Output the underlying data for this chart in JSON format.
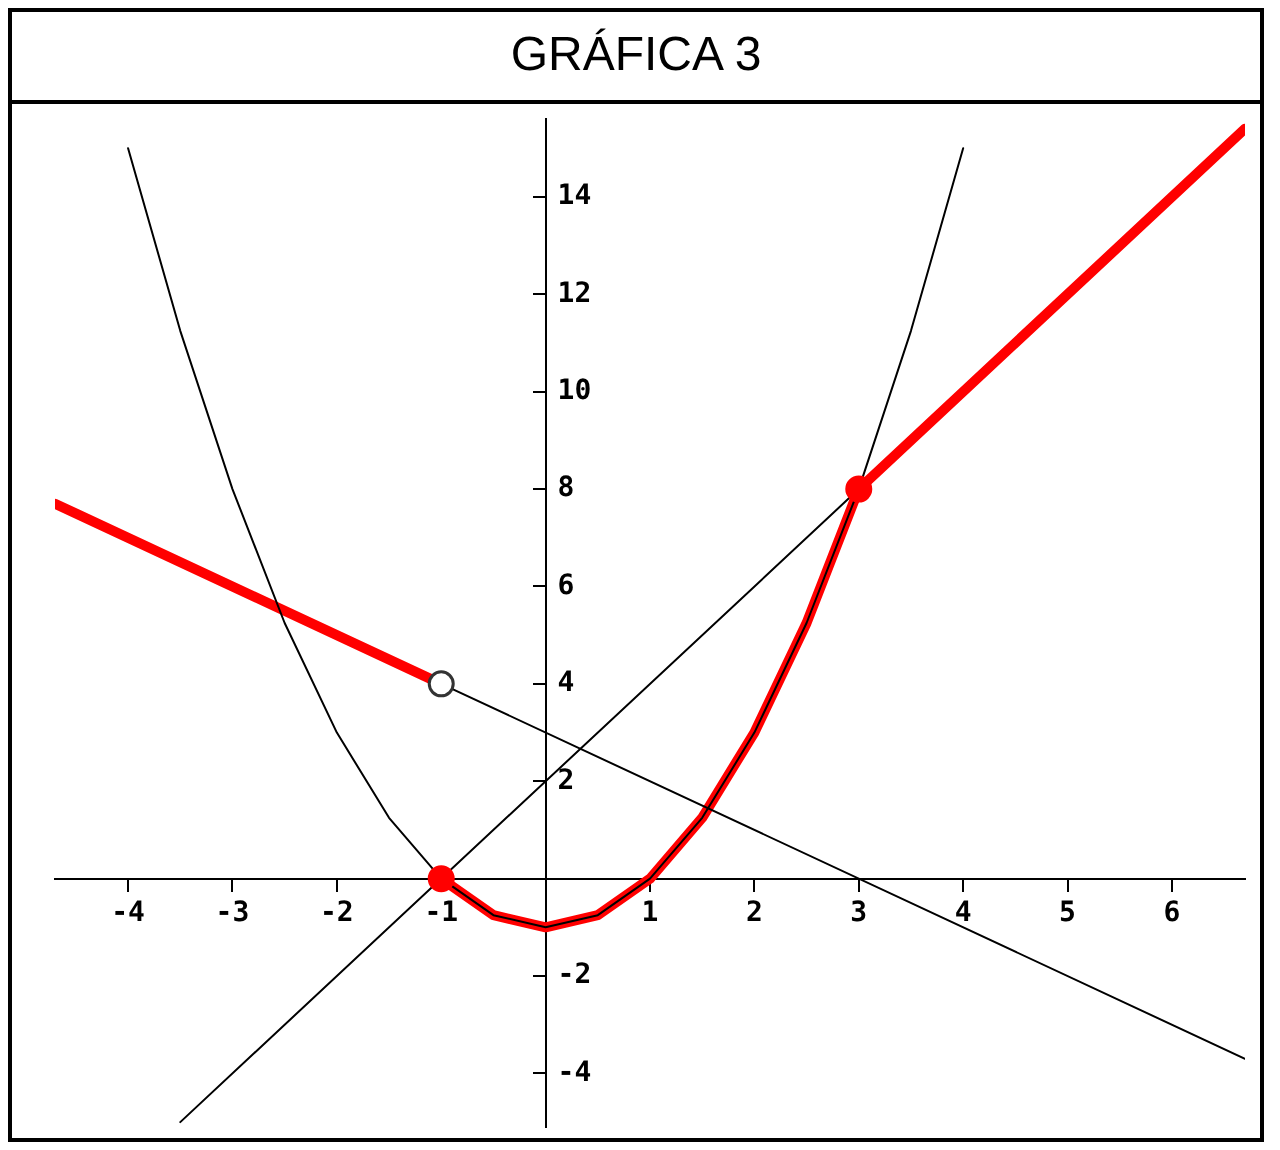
{
  "chart_data": {
    "type": "line",
    "title": "GRÁFICA 3",
    "xlim": [
      -4.7,
      6.7
    ],
    "ylim": [
      -5.1,
      15.6
    ],
    "xticks": [
      -4,
      -3,
      -2,
      -1,
      {
        "value": 0,
        "label": null
      },
      1,
      2,
      3,
      4,
      5,
      6
    ],
    "yticks": [
      -4,
      -2,
      {
        "value": 0,
        "label": null
      },
      2,
      4,
      6,
      8,
      10,
      12,
      14
    ],
    "grid": false,
    "legend": false,
    "marker": "none",
    "series": [
      {
        "type": "line",
        "color": "#000000",
        "x": [
          -4,
          -3.5,
          -3,
          -2.5,
          -2,
          -1.5,
          -1,
          -0.5,
          0,
          0.5,
          1,
          1.5,
          2,
          2.5,
          3,
          3.5,
          4
        ],
        "values": [
          15,
          11.25,
          8,
          5.25,
          3,
          1.25,
          0,
          -0.75,
          -1,
          -0.75,
          0,
          1.25,
          3,
          5.25,
          8,
          11.25,
          15
        ]
      },
      {
        "type": "line",
        "color": "#000000",
        "x": [
          -1,
          6.7
        ],
        "values": [
          4,
          -3.7
        ]
      },
      {
        "type": "line",
        "color": "#000000",
        "x": [
          -3.5,
          3
        ],
        "values": [
          -5,
          8
        ]
      },
      {
        "type": "line",
        "color": "#ff0000",
        "x": [
          -4.7,
          -1
        ],
        "values": [
          7.7,
          4
        ]
      },
      {
        "type": "line",
        "color": "#ff0000",
        "x": [
          -1,
          -0.5,
          0,
          0.5,
          1,
          1.5,
          2,
          2.5,
          3,
          6.7
        ],
        "values": [
          0,
          -0.75,
          -1,
          -0.75,
          0,
          1.25,
          3,
          5.25,
          8,
          15.4
        ]
      },
      {
        "type": "scatter",
        "color": "#ff0000",
        "marker": "circle",
        "x": [
          -1,
          3
        ],
        "values": [
          0,
          8
        ]
      },
      {
        "type": "scatter",
        "color": "#ffffff",
        "marker": "circle",
        "x": [
          -1
        ],
        "values": [
          4
        ]
      }
    ]
  }
}
